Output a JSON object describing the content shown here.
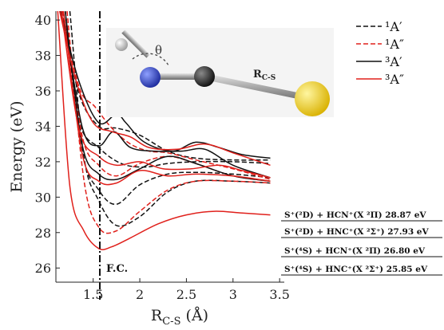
{
  "chart_data": {
    "type": "line",
    "title": "",
    "xlabel": "R_C-S (Å)",
    "xlabel_main": "R",
    "xlabel_sub": "C-S",
    "xlabel_unit": "(Å)",
    "ylabel": "Energy (eV)",
    "xlim": [
      1.1,
      3.55
    ],
    "ylim": [
      25.2,
      40.5
    ],
    "xticks": [
      1.5,
      2,
      2.5,
      3,
      3.5
    ],
    "xtick_labels": [
      "1.5",
      "2",
      "2.5",
      "3",
      "3.5"
    ],
    "yticks": [
      26,
      28,
      30,
      32,
      34,
      36,
      38,
      40
    ],
    "ytick_labels": [
      "26",
      "28",
      "30",
      "32",
      "34",
      "36",
      "38",
      "40"
    ],
    "grid": false,
    "legend_position": "top-right",
    "legend": [
      {
        "label": "¹A′",
        "color": "#111111",
        "dash": "dashed"
      },
      {
        "label": "¹A″",
        "color": "#e0201b",
        "dash": "dashed"
      },
      {
        "label": "³A′",
        "color": "#111111",
        "dash": "solid"
      },
      {
        "label": "³A″",
        "color": "#e0201b",
        "dash": "solid"
      }
    ],
    "franck_condon": {
      "x": 1.56,
      "label": "F.C."
    },
    "asymptotes": [
      {
        "label": "S⁺(²D) + HCN⁺(X ²Π) 28.87 eV"
      },
      {
        "label": "S⁺(²D) + HNC⁺(X ²Σ⁺) 27.93 eV"
      },
      {
        "label": "S⁺(⁴S) + HCN⁺(X ²Π) 26.80 eV"
      },
      {
        "label": "S⁺(⁴S) + HNC⁺(X ²Σ⁺) 25.85 eV"
      }
    ],
    "inset": {
      "angle_label": "θ",
      "bond_label": "R_C-S"
    },
    "series": [
      {
        "group": "singlet_Aprime",
        "color": "#111111",
        "dash": "dashed",
        "x": [
          1.25,
          1.4,
          1.56,
          1.75,
          2.0,
          2.3,
          2.6,
          3.0,
          3.4
        ],
        "y": [
          40.5,
          32.3,
          29.8,
          28.4,
          28.9,
          30.3,
          30.9,
          30.9,
          30.8
        ]
      },
      {
        "group": "singlet_Aprime",
        "color": "#111111",
        "dash": "dashed",
        "x": [
          1.2,
          1.38,
          1.56,
          1.75,
          2.0,
          2.3,
          2.6,
          3.0,
          3.4
        ],
        "y": [
          40.5,
          32.6,
          30.4,
          29.6,
          30.7,
          31.3,
          31.4,
          31.3,
          31.1
        ]
      },
      {
        "group": "singlet_Aprime",
        "color": "#111111",
        "dash": "dashed",
        "x": [
          1.18,
          1.35,
          1.56,
          1.8,
          2.05,
          2.3,
          2.6,
          3.0,
          3.4
        ],
        "y": [
          40.5,
          34.3,
          32.8,
          31.9,
          31.7,
          31.9,
          32.0,
          32.0,
          31.9
        ]
      },
      {
        "group": "singlet_Aprime",
        "color": "#111111",
        "dash": "dashed",
        "x": [
          1.16,
          1.35,
          1.56,
          1.75,
          2.0,
          2.3,
          2.6,
          3.0,
          3.4
        ],
        "y": [
          40.5,
          35.8,
          34.0,
          33.9,
          33.5,
          32.6,
          32.2,
          32.1,
          32.1
        ]
      },
      {
        "group": "singlet_A2prime",
        "color": "#e0201b",
        "dash": "dashed",
        "x": [
          1.22,
          1.4,
          1.56,
          1.75,
          2.0,
          2.3,
          2.6,
          3.0,
          3.4
        ],
        "y": [
          40.5,
          31.0,
          28.3,
          28.1,
          29.2,
          30.4,
          30.9,
          30.9,
          30.8
        ]
      },
      {
        "group": "singlet_A2prime",
        "color": "#e0201b",
        "dash": "dashed",
        "x": [
          1.2,
          1.38,
          1.56,
          1.75,
          2.0,
          2.3,
          2.6,
          3.0,
          3.4
        ],
        "y": [
          40.5,
          33.5,
          31.8,
          31.2,
          31.9,
          32.3,
          31.9,
          31.2,
          30.9
        ]
      },
      {
        "group": "singlet_A2prime",
        "color": "#e0201b",
        "dash": "dashed",
        "x": [
          1.17,
          1.35,
          1.52,
          1.7,
          1.9,
          2.1,
          2.3,
          2.6,
          3.0,
          3.4
        ],
        "y": [
          40.5,
          36.2,
          35.1,
          33.9,
          33.0,
          32.6,
          32.5,
          32.1,
          31.6,
          31.0
        ]
      },
      {
        "group": "triplet_Aprime",
        "color": "#111111",
        "dash": "solid",
        "x": [
          1.2,
          1.38,
          1.56,
          1.75,
          2.0,
          2.3,
          2.6,
          3.0,
          3.4
        ],
        "y": [
          40.5,
          33.0,
          31.3,
          31.0,
          31.6,
          32.3,
          31.9,
          31.2,
          30.9
        ]
      },
      {
        "group": "triplet_Aprime",
        "color": "#111111",
        "dash": "solid",
        "x": [
          1.18,
          1.38,
          1.56,
          1.72,
          1.9,
          2.15,
          2.45,
          2.7,
          3.0,
          3.4
        ],
        "y": [
          40.5,
          34.0,
          32.9,
          33.7,
          32.8,
          32.6,
          32.6,
          32.7,
          31.8,
          31.1
        ]
      },
      {
        "group": "triplet_Aprime",
        "color": "#111111",
        "dash": "solid",
        "x": [
          1.15,
          1.35,
          1.56,
          1.75,
          1.85,
          2.05,
          2.35,
          2.6,
          2.85,
          3.1,
          3.4
        ],
        "y": [
          40.5,
          36.5,
          34.2,
          34.7,
          34.2,
          33.1,
          32.6,
          33.1,
          32.8,
          32.4,
          32.2
        ]
      },
      {
        "group": "triplet_A2prime",
        "color": "#e0201b",
        "dash": "solid",
        "x": [
          1.12,
          1.25,
          1.4,
          1.56,
          1.7,
          1.9,
          2.2,
          2.5,
          2.8,
          3.1,
          3.4
        ],
        "y": [
          40.5,
          30.6,
          28.1,
          27.1,
          27.2,
          27.7,
          28.5,
          29.0,
          29.2,
          29.1,
          29.0
        ]
      },
      {
        "group": "triplet_A2prime",
        "color": "#e0201b",
        "dash": "solid",
        "x": [
          1.18,
          1.38,
          1.56,
          1.75,
          2.0,
          2.3,
          2.6,
          3.0,
          3.4
        ],
        "y": [
          40.5,
          32.5,
          30.9,
          30.8,
          31.5,
          31.2,
          31.3,
          31.2,
          30.9
        ]
      },
      {
        "group": "triplet_A2prime",
        "color": "#e0201b",
        "dash": "solid",
        "x": [
          1.16,
          1.35,
          1.56,
          1.75,
          2.0,
          2.25,
          2.55,
          2.85,
          3.1,
          3.4
        ],
        "y": [
          40.5,
          33.8,
          32.3,
          31.8,
          32.0,
          31.6,
          31.6,
          31.8,
          31.5,
          31.1
        ]
      },
      {
        "group": "triplet_A2prime",
        "color": "#e0201b",
        "dash": "solid",
        "x": [
          1.14,
          1.32,
          1.5,
          1.7,
          1.9,
          2.1,
          2.4,
          2.7,
          3.0,
          3.4
        ],
        "y": [
          40.5,
          36.5,
          34.2,
          33.7,
          33.4,
          32.8,
          32.7,
          33.0,
          32.5,
          31.8
        ]
      }
    ]
  }
}
